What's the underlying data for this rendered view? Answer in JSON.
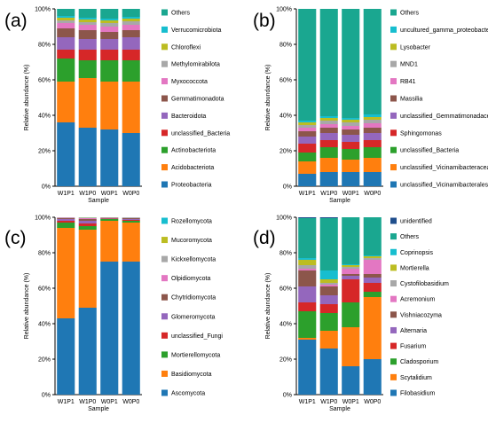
{
  "chart_data": [
    {
      "panel_label": "(a)",
      "type": "bar",
      "stacked": true,
      "ylabel": "Relative abundance (%)",
      "xlabel": "Sample",
      "ylim": [
        0,
        100
      ],
      "yticks": [
        "0%",
        "20%",
        "40%",
        "60%",
        "80%",
        "100%"
      ],
      "categories": [
        "W1P1",
        "W1P0",
        "W0P1",
        "W0P0"
      ],
      "series": [
        {
          "name": "Proteobacteria",
          "color": "#1f77b4",
          "values": [
            36,
            33,
            32,
            30
          ]
        },
        {
          "name": "Acidobacteriota",
          "color": "#ff7f0e",
          "values": [
            23,
            28,
            27,
            29
          ]
        },
        {
          "name": "Actinobacteriota",
          "color": "#2ca02c",
          "values": [
            13,
            10,
            12,
            12
          ]
        },
        {
          "name": "unclassified_Bacteria",
          "color": "#d62728",
          "values": [
            5,
            6,
            6,
            6
          ]
        },
        {
          "name": "Bacteroidota",
          "color": "#9467bd",
          "values": [
            7,
            6,
            6,
            7
          ]
        },
        {
          "name": "Gemmatimonadota",
          "color": "#8c564b",
          "values": [
            5,
            5,
            4,
            4
          ]
        },
        {
          "name": "Myxococcota",
          "color": "#e377c2",
          "values": [
            3,
            3,
            3,
            3
          ]
        },
        {
          "name": "Methylomirabilota",
          "color": "#a8a8a8",
          "values": [
            1.5,
            1.5,
            2,
            2
          ]
        },
        {
          "name": "Chloroflexi",
          "color": "#bcbd22",
          "values": [
            1.5,
            1.5,
            1.5,
            1.5
          ]
        },
        {
          "name": "Verrucomicrobiota",
          "color": "#17becf",
          "values": [
            1,
            1,
            1,
            1
          ]
        },
        {
          "name": "Others",
          "color": "#1aa790",
          "values": [
            4,
            5,
            5.5,
            4.5
          ]
        }
      ]
    },
    {
      "panel_label": "(b)",
      "type": "bar",
      "stacked": true,
      "ylabel": "Relative abundance (%)",
      "xlabel": "Sample",
      "ylim": [
        0,
        100
      ],
      "yticks": [
        "0%",
        "20%",
        "40%",
        "60%",
        "80%",
        "100%"
      ],
      "categories": [
        "W1P1",
        "W1P0",
        "W0P1",
        "W0P0"
      ],
      "series": [
        {
          "name": "unclassified_Vicinamibacterales",
          "color": "#1f77b4",
          "values": [
            7,
            8,
            8,
            8
          ]
        },
        {
          "name": "unclassified_Vicinamibacteraceae",
          "color": "#ff7f0e",
          "values": [
            7,
            8,
            7,
            8
          ]
        },
        {
          "name": "unclassified_Bacteria",
          "color": "#2ca02c",
          "values": [
            5,
            6,
            6,
            6
          ]
        },
        {
          "name": "Sphingomonas",
          "color": "#d62728",
          "values": [
            5,
            4,
            4,
            4
          ]
        },
        {
          "name": "unclassified_Gemmatimonadaceae",
          "color": "#9467bd",
          "values": [
            4,
            4,
            4,
            4
          ]
        },
        {
          "name": "Massilia",
          "color": "#8c564b",
          "values": [
            3,
            3,
            3,
            3
          ]
        },
        {
          "name": "RB41",
          "color": "#e377c2",
          "values": [
            2,
            2,
            2,
            2.5
          ]
        },
        {
          "name": "MND1",
          "color": "#a8a8a8",
          "values": [
            1.5,
            2,
            2,
            2
          ]
        },
        {
          "name": "Lysobacter",
          "color": "#bcbd22",
          "values": [
            1.5,
            1.5,
            1.5,
            1.5
          ]
        },
        {
          "name": "uncultured_gamma_proteobacterium",
          "color": "#17becf",
          "values": [
            1,
            1,
            1,
            1.5
          ]
        },
        {
          "name": "Others",
          "color": "#1aa790",
          "values": [
            63,
            60.5,
            61.5,
            59.5
          ]
        }
      ]
    },
    {
      "panel_label": "(c)",
      "type": "bar",
      "stacked": true,
      "ylabel": "Relative abundance (%)",
      "xlabel": "Sample",
      "ylim": [
        0,
        100
      ],
      "yticks": [
        "0%",
        "20%",
        "40%",
        "60%",
        "80%",
        "100%"
      ],
      "categories": [
        "W1P1",
        "W1P0",
        "W0P1",
        "W0P0"
      ],
      "series": [
        {
          "name": "Ascomycota",
          "color": "#1f77b4",
          "values": [
            43,
            49,
            75,
            75
          ]
        },
        {
          "name": "Basidiomycota",
          "color": "#ff7f0e",
          "values": [
            51,
            44,
            23,
            22
          ]
        },
        {
          "name": "Mortierellomycota",
          "color": "#2ca02c",
          "values": [
            3,
            2,
            1,
            1
          ]
        },
        {
          "name": "unclassified_Fungi",
          "color": "#d62728",
          "values": [
            1,
            1.5,
            0.3,
            0.5
          ]
        },
        {
          "name": "Glomeromycota",
          "color": "#9467bd",
          "values": [
            1,
            1.5,
            0.2,
            0.5
          ]
        },
        {
          "name": "Chytridiomycota",
          "color": "#8c564b",
          "values": [
            0.5,
            1,
            0.2,
            0.5
          ]
        },
        {
          "name": "Olpidiomycota",
          "color": "#e377c2",
          "values": [
            0.3,
            0.5,
            0.1,
            0.2
          ]
        },
        {
          "name": "Kickxellomycota",
          "color": "#a8a8a8",
          "values": [
            0.1,
            0.2,
            0.1,
            0.1
          ]
        },
        {
          "name": "Mucoromycota",
          "color": "#bcbd22",
          "values": [
            0.05,
            0.2,
            0.05,
            0.1
          ]
        },
        {
          "name": "Rozellomycota",
          "color": "#17becf",
          "values": [
            0.05,
            0.1,
            0.05,
            0.1
          ]
        }
      ]
    },
    {
      "panel_label": "(d)",
      "type": "bar",
      "stacked": true,
      "ylabel": "Relative abundance (%)",
      "xlabel": "Sample",
      "ylim": [
        0,
        100
      ],
      "yticks": [
        "0%",
        "20%",
        "40%",
        "60%",
        "80%",
        "100%"
      ],
      "categories": [
        "W1P1",
        "W1P0",
        "W0P1",
        "W0P0"
      ],
      "series": [
        {
          "name": "Filobasidium",
          "color": "#1f77b4",
          "values": [
            31,
            26,
            16,
            20
          ]
        },
        {
          "name": "Scytalidium",
          "color": "#ff7f0e",
          "values": [
            1,
            10,
            22,
            35
          ]
        },
        {
          "name": "Cladosporium",
          "color": "#2ca02c",
          "values": [
            15,
            10,
            14,
            3
          ]
        },
        {
          "name": "Fusarium",
          "color": "#d62728",
          "values": [
            5,
            5,
            13,
            5
          ]
        },
        {
          "name": "Alternaria",
          "color": "#9467bd",
          "values": [
            9,
            5,
            2,
            3
          ]
        },
        {
          "name": "Vishniacozyma",
          "color": "#8c564b",
          "values": [
            9,
            5,
            1,
            2
          ]
        },
        {
          "name": "Acremonium",
          "color": "#e377c2",
          "values": [
            1,
            1,
            3,
            8
          ]
        },
        {
          "name": "Cystofilobasidium",
          "color": "#a8a8a8",
          "values": [
            2,
            1,
            1,
            1
          ]
        },
        {
          "name": "Mortierella",
          "color": "#bcbd22",
          "values": [
            3,
            2,
            1,
            1
          ]
        },
        {
          "name": "Coprinopsis",
          "color": "#17becf",
          "values": [
            1,
            5,
            0.5,
            0.5
          ]
        },
        {
          "name": "Others",
          "color": "#1aa790",
          "values": [
            22.5,
            29.5,
            27.5,
            21.5
          ]
        },
        {
          "name": "unidentified",
          "color": "#1f4e8c",
          "values": [
            0.5,
            0.5,
            0.5,
            0.5
          ]
        }
      ]
    }
  ]
}
